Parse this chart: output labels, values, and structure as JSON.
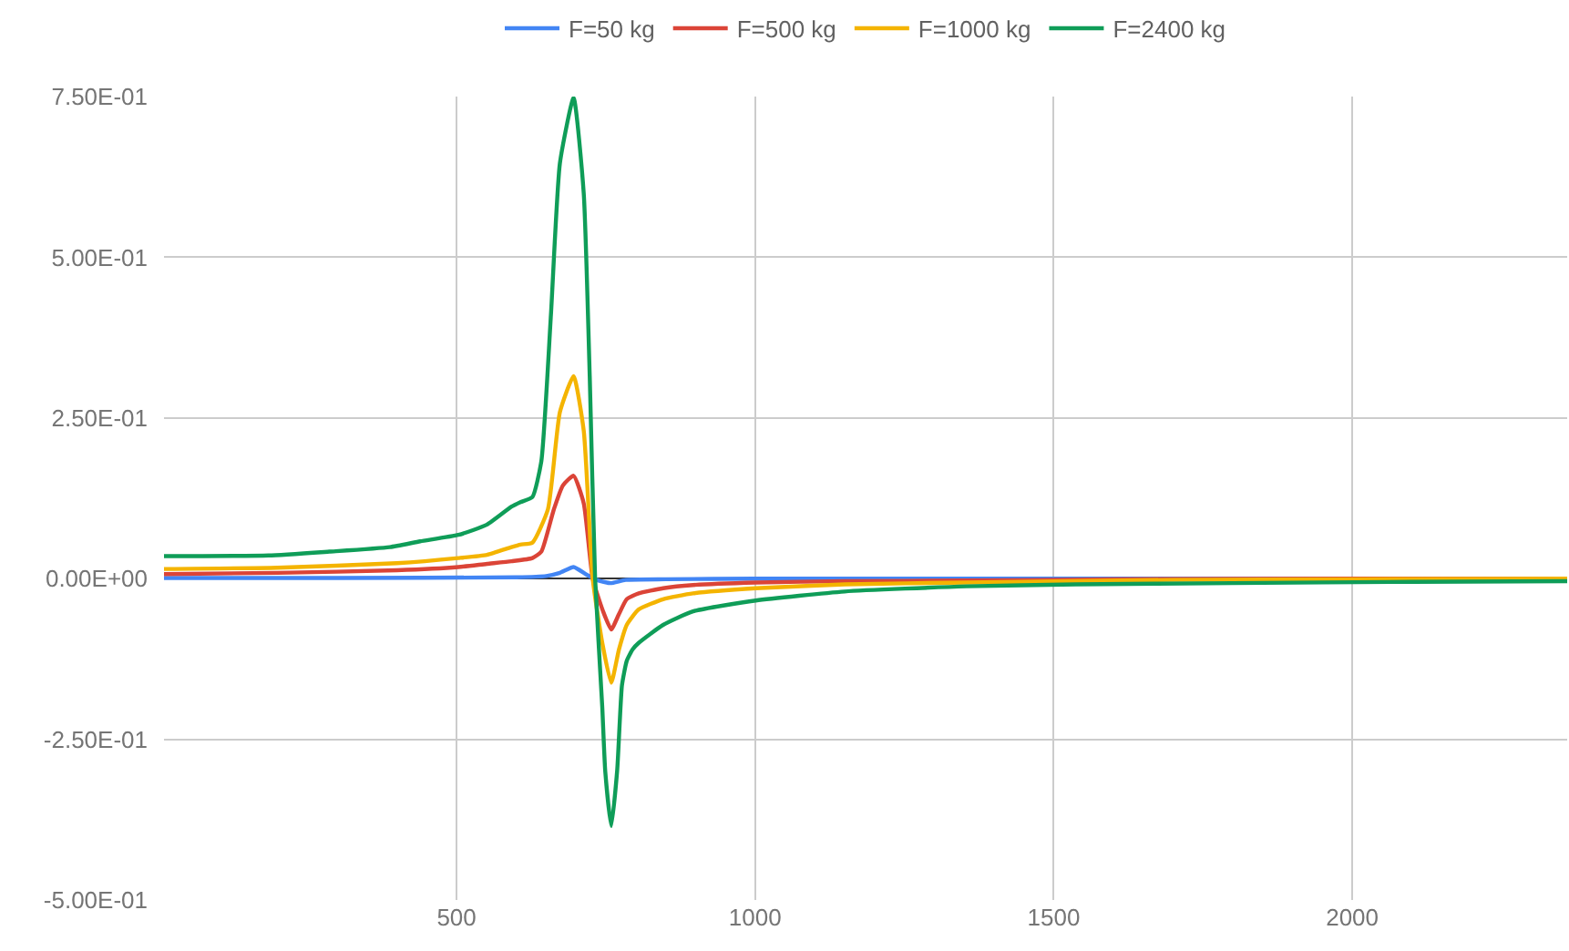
{
  "chart_data": {
    "type": "line",
    "legend": "top",
    "grid": true,
    "xlim": [
      10,
      2360
    ],
    "xticks": [
      500,
      1000,
      1500,
      2000
    ],
    "ylim": [
      -0.5,
      0.75
    ],
    "yticks": [
      {
        "value": -0.5,
        "label": "-5.00E-01"
      },
      {
        "value": -0.25,
        "label": "-2.50E-01"
      },
      {
        "value": 0,
        "label": "0.00E+00"
      },
      {
        "value": 0.25,
        "label": "2.50E-01"
      },
      {
        "value": 0.5,
        "label": "5.00E-01"
      },
      {
        "value": 0.75,
        "label": "7.50E-01"
      }
    ],
    "series": [
      {
        "name": "F=50 kg",
        "color": "#4285f4",
        "x": [
          10,
          300,
          600,
          650,
          673,
          696,
          718,
          738,
          758,
          783,
          850,
          1000,
          1500,
          2000,
          2360
        ],
        "values": [
          0.001,
          0.001,
          0.002,
          0.004,
          0.009,
          0.018,
          0.006,
          -0.003,
          -0.007,
          -0.002,
          -0.001,
          0,
          0,
          0,
          0
        ]
      },
      {
        "name": "F=500 kg",
        "color": "#db4437",
        "x": [
          10,
          200,
          400,
          503,
          551,
          592,
          627,
          642,
          663,
          678,
          696,
          713,
          728,
          745,
          759,
          772,
          785,
          805,
          846,
          896,
          1001,
          1150,
          1350,
          1600,
          2000,
          2360
        ],
        "values": [
          0.007,
          0.009,
          0.013,
          0.018,
          0.023,
          0.027,
          0.032,
          0.042,
          0.108,
          0.145,
          0.16,
          0.117,
          0,
          -0.05,
          -0.079,
          -0.055,
          -0.032,
          -0.023,
          -0.015,
          -0.01,
          -0.006,
          -0.004,
          -0.003,
          -0.001,
          0,
          0
        ]
      },
      {
        "name": "F=1000 kg",
        "color": "#f4b400",
        "x": [
          10,
          200,
          400,
          503,
          551,
          592,
          607,
          627,
          653,
          673,
          696,
          713,
          728,
          744,
          759,
          772,
          785,
          805,
          846,
          896,
          1001,
          1150,
          1354,
          1700,
          2000,
          2360
        ],
        "values": [
          0.015,
          0.017,
          0.024,
          0.032,
          0.037,
          0.049,
          0.053,
          0.056,
          0.108,
          0.259,
          0.315,
          0.23,
          0,
          -0.1,
          -0.162,
          -0.11,
          -0.072,
          -0.048,
          -0.032,
          -0.023,
          -0.015,
          -0.009,
          -0.006,
          -0.002,
          -0.001,
          0
        ]
      },
      {
        "name": "F=2400 kg",
        "color": "#0f9d58",
        "x": [
          10,
          185,
          287,
          388,
          439,
          503,
          551,
          592,
          607,
          627,
          642,
          658,
          673,
          696,
          713,
          723,
          732,
          744,
          749,
          759,
          769,
          777,
          785,
          795,
          805,
          846,
          896,
          1001,
          1150,
          1354,
          1537,
          1800,
          2100,
          2360
        ],
        "values": [
          0.035,
          0.036,
          0.042,
          0.049,
          0.058,
          0.068,
          0.084,
          0.112,
          0.119,
          0.127,
          0.183,
          0.41,
          0.646,
          0.748,
          0.599,
          0.315,
          0,
          -0.2,
          -0.3,
          -0.385,
          -0.298,
          -0.166,
          -0.128,
          -0.11,
          -0.1,
          -0.072,
          -0.051,
          -0.034,
          -0.02,
          -0.012,
          -0.009,
          -0.007,
          -0.005,
          -0.004
        ]
      }
    ]
  }
}
